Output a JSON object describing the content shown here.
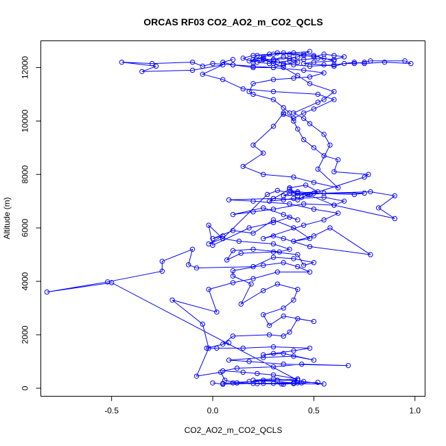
{
  "chart_data": {
    "type": "line",
    "title": "ORCAS RF03 CO2_AO2_m_CO2_QCLS",
    "xlabel": "CO2_AO2_m_CO2_QCLS",
    "ylabel": "Altitude (m)",
    "xlim": [
      -0.85,
      1.05
    ],
    "ylim": [
      -300,
      13000
    ],
    "xticks": [
      -0.5,
      0.0,
      0.5,
      1.0
    ],
    "xtick_labels": [
      "-0.5",
      "0.0",
      "0.5",
      "1.0"
    ],
    "yticks": [
      0,
      2000,
      4000,
      6000,
      8000,
      10000,
      12000
    ],
    "ytick_labels": [
      "0",
      "2000",
      "4000",
      "6000",
      "8000",
      "10000",
      "12000"
    ],
    "grid": false,
    "color": "#0000ff",
    "markers": "open-circle",
    "series": [
      {
        "points": [
          [
            0.0,
            200
          ],
          [
            0.05,
            150
          ],
          [
            0.2,
            180
          ],
          [
            0.4,
            170
          ],
          [
            0.55,
            160
          ],
          [
            0.45,
            250
          ],
          [
            0.3,
            350
          ],
          [
            0.2,
            300
          ],
          [
            0.4,
            200
          ],
          [
            0.52,
            220
          ],
          [
            0.3,
            180
          ],
          [
            0.12,
            200
          ],
          [
            0.22,
            170
          ],
          [
            0.34,
            160
          ],
          [
            0.42,
            200
          ],
          [
            0.44,
            200
          ],
          [
            0.35,
            150
          ],
          [
            0.25,
            180
          ],
          [
            0.1,
            200
          ],
          [
            0.05,
            180
          ],
          [
            0.18,
            250
          ],
          [
            0.32,
            300
          ],
          [
            0.42,
            350
          ],
          [
            0.3,
            500
          ],
          [
            0.22,
            550
          ],
          [
            0.15,
            600
          ],
          [
            0.05,
            650
          ],
          [
            0.12,
            750
          ],
          [
            0.3,
            800
          ],
          [
            0.44,
            900
          ],
          [
            0.67,
            850
          ],
          [
            0.35,
            900
          ],
          [
            0.18,
            1000
          ],
          [
            0.08,
            1050
          ],
          [
            0.25,
            1150
          ],
          [
            0.4,
            1200
          ],
          [
            0.5,
            1050
          ],
          [
            0.35,
            1300
          ],
          [
            0.25,
            1250
          ],
          [
            0.3,
            1300
          ],
          [
            0.4,
            1400
          ],
          [
            0.48,
            1500
          ],
          [
            0.3,
            1550
          ],
          [
            0.15,
            1500
          ],
          [
            0.02,
            1500
          ],
          [
            -0.03,
            1500
          ],
          [
            0.08,
            1700
          ],
          [
            0.05,
            1650
          ],
          [
            0.1,
            1950
          ],
          [
            0.28,
            2000
          ],
          [
            0.35,
            1950
          ],
          [
            0.38,
            2100
          ],
          [
            0.42,
            2600
          ],
          [
            0.5,
            2500
          ],
          [
            0.35,
            2700
          ],
          [
            0.28,
            2350
          ],
          [
            0.25,
            2750
          ],
          [
            0.35,
            3000
          ],
          [
            0.4,
            3300
          ],
          [
            0.42,
            3700
          ],
          [
            0.32,
            3900
          ],
          [
            0.25,
            3650
          ],
          [
            0.14,
            3150
          ],
          [
            0.19,
            3900
          ],
          [
            0.1,
            4200
          ],
          [
            0.1,
            4400
          ],
          [
            0.25,
            4600
          ],
          [
            0.35,
            4700
          ],
          [
            0.42,
            4550
          ],
          [
            0.48,
            4350
          ],
          [
            0.32,
            4350
          ],
          [
            0.2,
            4100
          ],
          [
            0.1,
            3950
          ],
          [
            -0.02,
            3700
          ],
          [
            0.02,
            2850
          ],
          [
            -0.2,
            3300
          ],
          [
            -0.05,
            2400
          ],
          [
            -0.02,
            1500
          ],
          [
            -0.08,
            450
          ],
          [
            0.04,
            600
          ],
          [
            0.06,
            300
          ],
          [
            0.12,
            200
          ],
          [
            0.25,
            300
          ],
          [
            0.42,
            300
          ],
          [
            -0.5,
            3950
          ],
          [
            -0.82,
            3600
          ],
          [
            -0.52,
            3980
          ],
          [
            -0.25,
            4380
          ],
          [
            -0.25,
            4750
          ],
          [
            -0.1,
            5200
          ],
          [
            -0.12,
            4620
          ],
          [
            -0.08,
            4500
          ],
          [
            0.2,
            4550
          ],
          [
            0.3,
            4900
          ],
          [
            0.4,
            4850
          ],
          [
            0.5,
            4700
          ],
          [
            0.45,
            4600
          ],
          [
            0.42,
            5000
          ],
          [
            0.3,
            5100
          ],
          [
            0.14,
            5050
          ],
          [
            0.07,
            4800
          ],
          [
            0.1,
            5150
          ],
          [
            0.2,
            5200
          ],
          [
            0.33,
            5100
          ],
          [
            0.38,
            5200
          ],
          [
            0.3,
            5400
          ],
          [
            0.13,
            5500
          ],
          [
            0.05,
            5600
          ],
          [
            -0.02,
            5400
          ],
          [
            0.05,
            5700
          ],
          [
            0.0,
            5600
          ],
          [
            0.1,
            5900
          ],
          [
            0.2,
            5800
          ],
          [
            0.3,
            6300
          ],
          [
            0.4,
            6000
          ],
          [
            0.48,
            5600
          ],
          [
            0.4,
            5500
          ],
          [
            0.5,
            5700
          ],
          [
            0.58,
            6000
          ],
          [
            0.78,
            5000
          ],
          [
            0.48,
            5300
          ],
          [
            0.35,
            5600
          ],
          [
            0.3,
            5700
          ],
          [
            0.25,
            5600
          ],
          [
            0.45,
            6100
          ],
          [
            0.55,
            6300
          ],
          [
            0.62,
            6550
          ],
          [
            0.5,
            6700
          ],
          [
            0.38,
            6900
          ],
          [
            0.2,
            7000
          ],
          [
            0.08,
            7050
          ],
          [
            0.3,
            7100
          ],
          [
            0.42,
            7050
          ],
          [
            0.47,
            7250
          ],
          [
            0.6,
            6850
          ],
          [
            0.9,
            6350
          ],
          [
            0.82,
            6750
          ],
          [
            0.9,
            7200
          ],
          [
            0.78,
            7350
          ],
          [
            0.55,
            7300
          ],
          [
            0.35,
            7200
          ],
          [
            0.38,
            7300
          ],
          [
            0.42,
            7350
          ],
          [
            0.5,
            7300
          ],
          [
            0.7,
            7250
          ],
          [
            0.75,
            7300
          ],
          [
            0.4,
            7300
          ],
          [
            0.32,
            7400
          ],
          [
            0.27,
            7250
          ],
          [
            0.05,
            5600
          ],
          [
            -0.02,
            6100
          ],
          [
            0.0,
            5350
          ],
          [
            0.18,
            6000
          ],
          [
            0.3,
            6200
          ],
          [
            0.38,
            6400
          ],
          [
            0.42,
            6300
          ],
          [
            0.35,
            6500
          ],
          [
            0.25,
            6750
          ],
          [
            0.1,
            6500
          ],
          [
            0.2,
            6600
          ],
          [
            0.3,
            6700
          ],
          [
            0.45,
            6900
          ],
          [
            0.6,
            6850
          ],
          [
            0.65,
            7000
          ],
          [
            0.55,
            7150
          ],
          [
            0.4,
            7100
          ],
          [
            0.35,
            7050
          ],
          [
            0.28,
            7000
          ],
          [
            0.38,
            7450
          ],
          [
            0.42,
            7200
          ],
          [
            0.38,
            7500
          ],
          [
            0.46,
            7600
          ],
          [
            0.52,
            7350
          ],
          [
            0.42,
            7300
          ],
          [
            0.48,
            7250
          ],
          [
            0.44,
            7150
          ],
          [
            0.75,
            7900
          ],
          [
            0.77,
            8000
          ],
          [
            0.6,
            8100
          ],
          [
            0.62,
            8550
          ],
          [
            0.55,
            8700
          ],
          [
            0.5,
            9000
          ],
          [
            0.45,
            9300
          ],
          [
            0.42,
            9700
          ],
          [
            0.4,
            10000
          ],
          [
            0.38,
            10300
          ],
          [
            0.35,
            10500
          ],
          [
            0.3,
            10800
          ],
          [
            0.2,
            11000
          ],
          [
            0.18,
            11100
          ],
          [
            0.2,
            11400
          ],
          [
            0.3,
            11550
          ],
          [
            0.4,
            11600
          ],
          [
            0.48,
            11650
          ],
          [
            0.55,
            11800
          ],
          [
            0.45,
            11900
          ],
          [
            0.3,
            12000
          ],
          [
            0.2,
            12050
          ],
          [
            0.1,
            12100
          ],
          [
            0.0,
            12150
          ],
          [
            -0.05,
            12050
          ],
          [
            -0.1,
            12200
          ],
          [
            -0.3,
            12150
          ],
          [
            -0.45,
            12200
          ],
          [
            -0.28,
            12050
          ],
          [
            -0.35,
            11850
          ],
          [
            -0.1,
            11900
          ],
          [
            0.05,
            12100
          ],
          [
            -0.05,
            11750
          ],
          [
            0.05,
            11550
          ],
          [
            0.15,
            11200
          ],
          [
            0.3,
            11100
          ],
          [
            0.52,
            11000
          ],
          [
            0.6,
            10800
          ],
          [
            0.5,
            10450
          ],
          [
            0.45,
            10300
          ],
          [
            0.4,
            10100
          ],
          [
            0.35,
            10250
          ],
          [
            0.35,
            10300
          ],
          [
            0.3,
            9800
          ],
          [
            0.2,
            9100
          ],
          [
            0.25,
            8800
          ],
          [
            0.15,
            8300
          ],
          [
            0.25,
            8000
          ],
          [
            0.4,
            7900
          ],
          [
            0.5,
            7700
          ],
          [
            0.62,
            7500
          ],
          [
            0.52,
            8200
          ],
          [
            0.58,
            9100
          ],
          [
            0.55,
            9500
          ],
          [
            0.48,
            9900
          ],
          [
            0.45,
            10100
          ],
          [
            0.4,
            10300
          ],
          [
            0.52,
            10700
          ],
          [
            0.55,
            10800
          ],
          [
            0.6,
            11100
          ],
          [
            0.48,
            11400
          ],
          [
            0.42,
            11700
          ],
          [
            0.35,
            12000
          ],
          [
            0.3,
            12150
          ],
          [
            0.25,
            12300
          ],
          [
            0.2,
            12200
          ],
          [
            0.15,
            12350
          ],
          [
            0.2,
            12450
          ],
          [
            0.28,
            12500
          ],
          [
            0.35,
            12550
          ],
          [
            0.45,
            12500
          ],
          [
            0.5,
            12450
          ],
          [
            0.55,
            12350
          ],
          [
            0.6,
            12250
          ],
          [
            0.5,
            12200
          ],
          [
            0.45,
            12150
          ],
          [
            0.55,
            12100
          ],
          [
            0.6,
            12050
          ],
          [
            0.65,
            12150
          ],
          [
            0.7,
            12150
          ],
          [
            0.75,
            12200
          ],
          [
            0.78,
            12250
          ],
          [
            0.95,
            12250
          ],
          [
            0.98,
            12150
          ],
          [
            0.85,
            12200
          ],
          [
            0.75,
            12150
          ],
          [
            0.7,
            12200
          ],
          [
            0.6,
            12100
          ],
          [
            0.48,
            12050
          ],
          [
            0.4,
            12100
          ],
          [
            0.35,
            12150
          ],
          [
            0.3,
            12250
          ],
          [
            0.25,
            12350
          ],
          [
            0.2,
            12300
          ],
          [
            0.22,
            12450
          ],
          [
            0.3,
            12500
          ],
          [
            0.4,
            12550
          ],
          [
            0.48,
            12600
          ],
          [
            0.42,
            12400
          ],
          [
            0.38,
            12350
          ],
          [
            0.3,
            12300
          ],
          [
            0.18,
            12250
          ],
          [
            0.25,
            12400
          ],
          [
            0.32,
            12550
          ],
          [
            0.38,
            12500
          ],
          [
            0.45,
            12450
          ],
          [
            0.5,
            12400
          ],
          [
            0.55,
            12500
          ],
          [
            0.6,
            12450
          ],
          [
            0.65,
            12400
          ],
          [
            0.6,
            12300
          ],
          [
            0.52,
            12350
          ],
          [
            0.45,
            12300
          ],
          [
            0.38,
            12250
          ],
          [
            0.32,
            12200
          ],
          [
            0.28,
            12150
          ],
          [
            0.22,
            12200
          ],
          [
            0.3,
            12300
          ],
          [
            0.35,
            12400
          ],
          [
            0.4,
            12300
          ],
          [
            0.42,
            12200
          ],
          [
            0.35,
            12100
          ],
          [
            0.3,
            12000
          ],
          [
            0.2,
            12000
          ],
          [
            0.1,
            12100
          ],
          [
            0.05,
            12200
          ],
          [
            0.1,
            12300
          ]
        ]
      }
    ]
  }
}
